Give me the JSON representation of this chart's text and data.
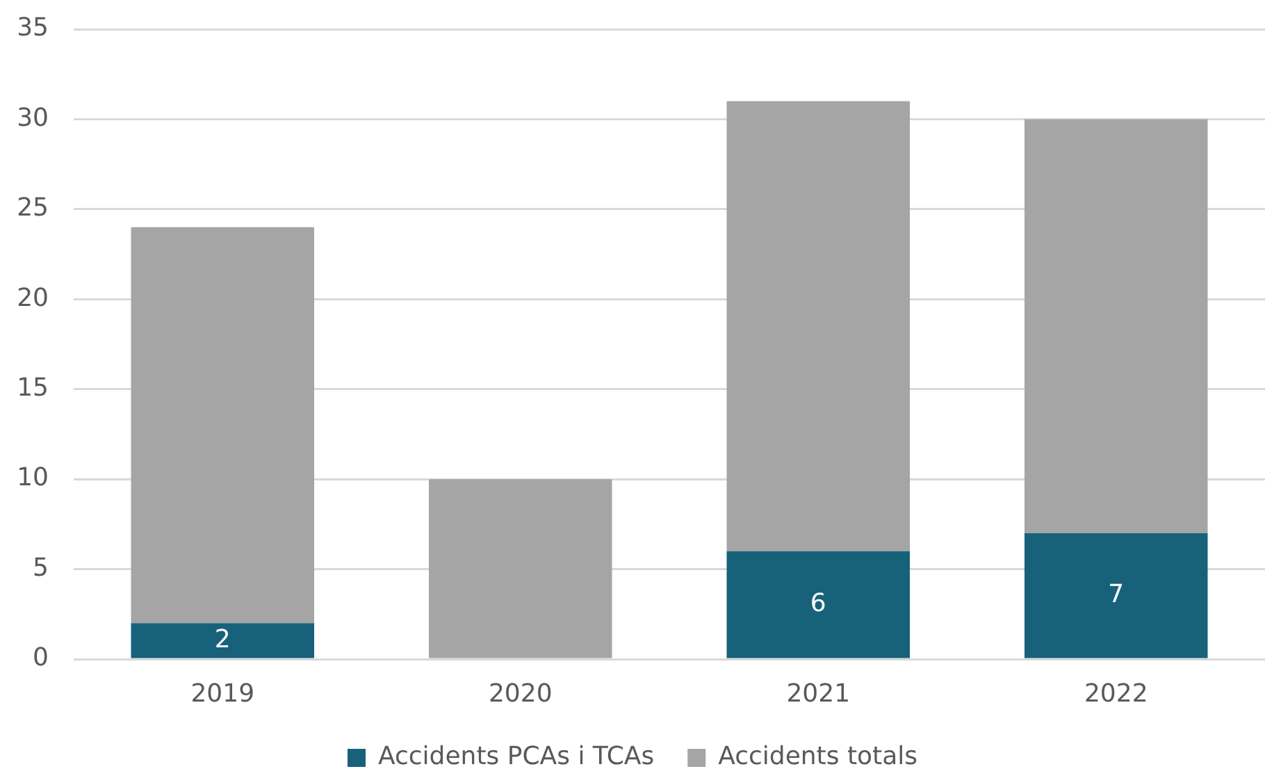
{
  "chart_data": {
    "type": "bar",
    "categories": [
      "2019",
      "2020",
      "2021",
      "2022"
    ],
    "stacked": true,
    "series": [
      {
        "name": "Accidents PCAs i TCAs",
        "color": "#17627a",
        "values": [
          2,
          null,
          6,
          7
        ],
        "value_labels": [
          "2",
          null,
          "6",
          "7"
        ]
      },
      {
        "name": "Accidents totals",
        "color": "#a5a5a5",
        "values": [
          22,
          10,
          25,
          23
        ]
      }
    ],
    "ylim": [
      0,
      35
    ],
    "yticks": [
      0,
      5,
      10,
      15,
      20,
      25,
      30,
      35
    ],
    "grid": "y",
    "legend": "bottom"
  }
}
